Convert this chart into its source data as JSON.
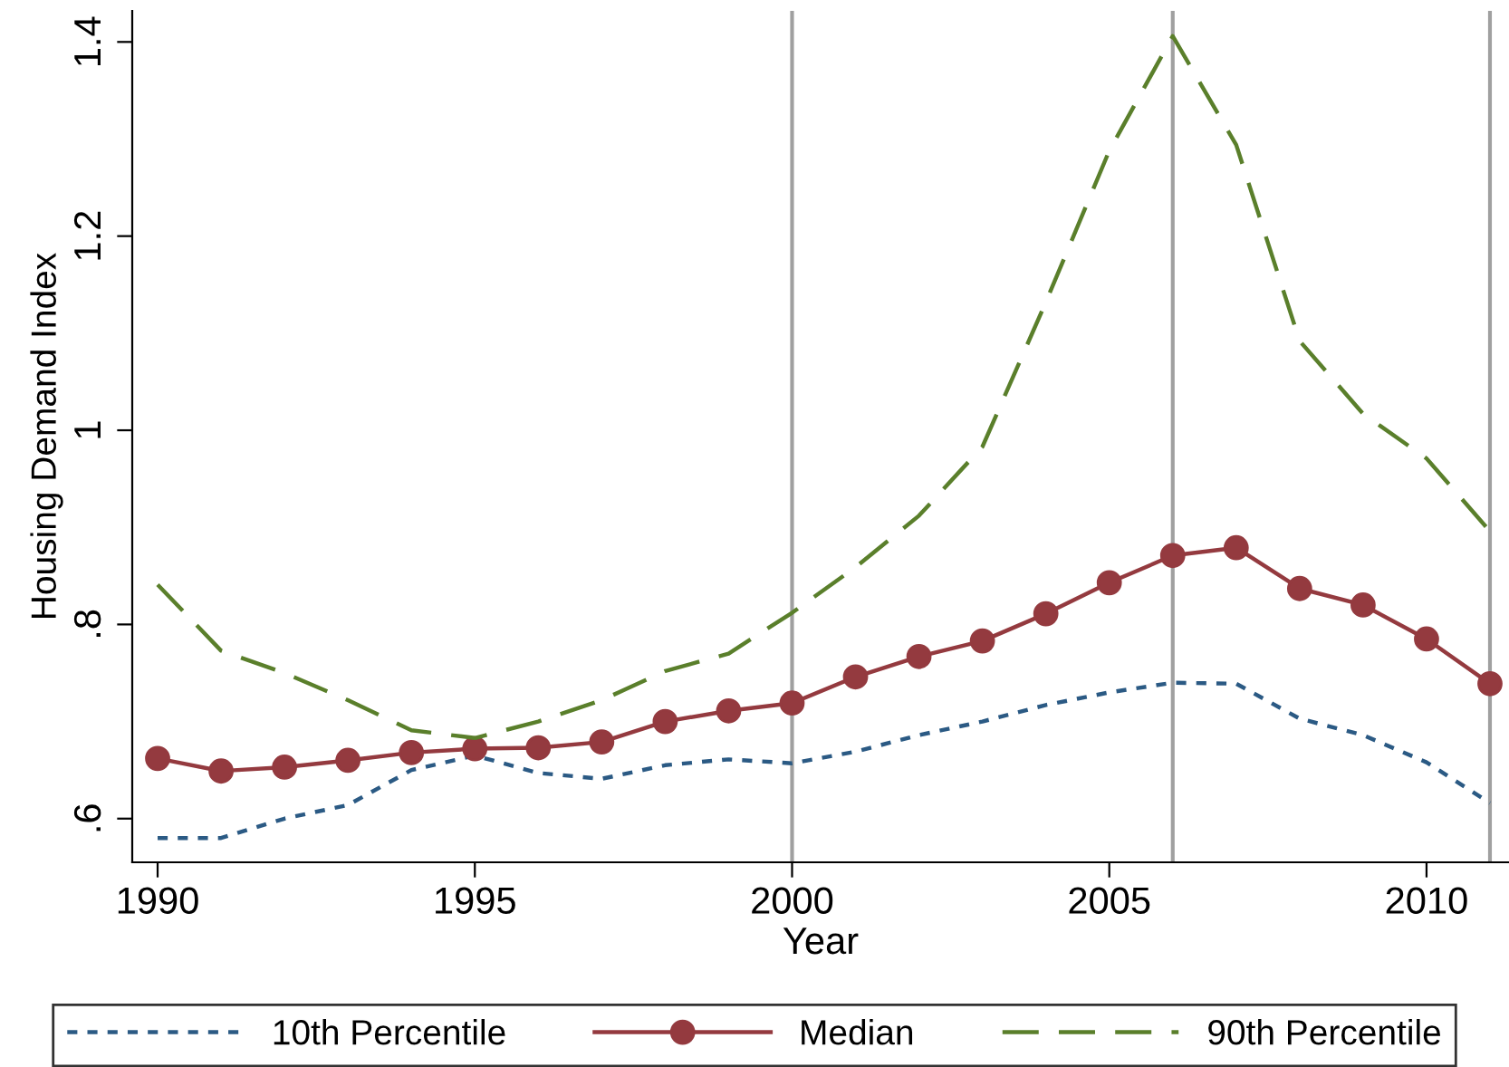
{
  "chart_data": {
    "type": "line",
    "xlabel": "Year",
    "ylabel": "Housing Demand Index",
    "x": [
      1990,
      1991,
      1992,
      1993,
      1994,
      1995,
      1996,
      1997,
      1998,
      1999,
      2000,
      2001,
      2002,
      2003,
      2004,
      2005,
      2006,
      2007,
      2008,
      2009,
      2010,
      2011
    ],
    "series": [
      {
        "name": "10th Percentile",
        "color": "#2b5a84",
        "line_style": "dotted",
        "marker": "none",
        "values": [
          0.58,
          0.58,
          0.6,
          0.614,
          0.65,
          0.665,
          0.647,
          0.641,
          0.655,
          0.661,
          0.657,
          0.669,
          0.686,
          0.7,
          0.717,
          0.73,
          0.74,
          0.739,
          0.703,
          0.686,
          0.658,
          0.616
        ]
      },
      {
        "name": "Median",
        "color": "#943a3f",
        "line_style": "solid",
        "marker": "circle",
        "values": [
          0.662,
          0.649,
          0.653,
          0.66,
          0.668,
          0.672,
          0.673,
          0.679,
          0.7,
          0.711,
          0.719,
          0.746,
          0.767,
          0.783,
          0.811,
          0.843,
          0.871,
          0.879,
          0.837,
          0.82,
          0.785,
          0.739
        ]
      },
      {
        "name": "90th Percentile",
        "color": "#5a7f2b",
        "line_style": "dashed",
        "marker": "none",
        "values": [
          0.841,
          0.773,
          0.75,
          0.722,
          0.691,
          0.683,
          0.7,
          0.722,
          0.752,
          0.77,
          0.812,
          0.859,
          0.912,
          0.983,
          1.132,
          1.288,
          1.406,
          1.294,
          1.092,
          1.017,
          0.971,
          0.896
        ]
      }
    ],
    "xlim": [
      1989.6,
      2011.3
    ],
    "ylim": [
      0.555,
      1.432
    ],
    "xticks": [
      1990,
      1995,
      2000,
      2005,
      2010
    ],
    "yticks": [
      {
        "value": 0.6,
        "label": ".6"
      },
      {
        "value": 0.8,
        "label": ".8"
      },
      {
        "value": 1,
        "label": "1"
      },
      {
        "value": 1.2,
        "label": "1.2"
      },
      {
        "value": 1.4,
        "label": "1.4"
      }
    ],
    "ref_lines": [
      {
        "axis": "x",
        "value": 2000,
        "color": "#a0a0a0"
      },
      {
        "axis": "x",
        "value": 2006,
        "color": "#a0a0a0"
      },
      {
        "axis": "x",
        "value": 2011,
        "color": "#a0a0a0"
      }
    ],
    "grid": false,
    "legend": "bottom"
  }
}
